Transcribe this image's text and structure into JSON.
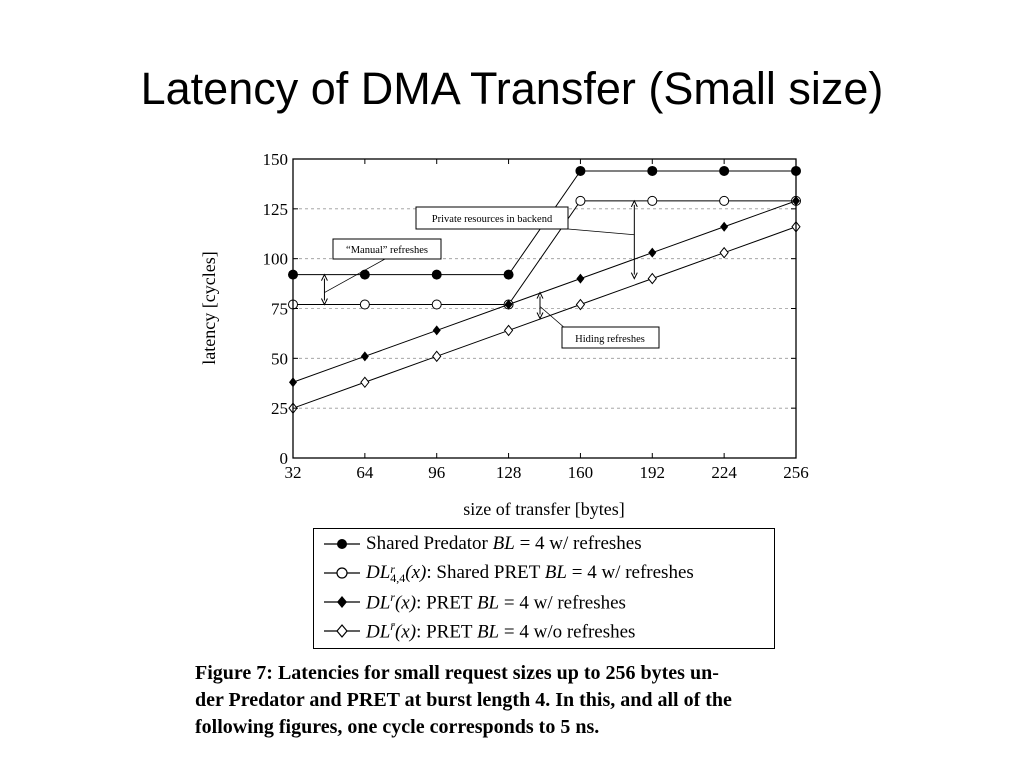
{
  "slide": {
    "title": "Latency of DMA Transfer (Small size)"
  },
  "chart_data": {
    "type": "line",
    "xlabel": "size of transfer [bytes]",
    "ylabel": "latency [cycles]",
    "x": [
      32,
      64,
      96,
      128,
      160,
      192,
      224,
      256
    ],
    "x_ticks": [
      "32",
      "64",
      "96",
      "128",
      "160",
      "192",
      "224",
      "256"
    ],
    "y_ticks": [
      "0",
      "25",
      "50",
      "75",
      "100",
      "125",
      "150"
    ],
    "xlim": [
      32,
      256
    ],
    "ylim": [
      0,
      150
    ],
    "grid": "horizontal dashed",
    "legend_position": "below",
    "series": [
      {
        "marker": "filled-circle",
        "values": [
          92,
          92,
          92,
          92,
          144,
          144,
          144,
          144
        ],
        "legend": {
          "prefix": "",
          "math": "",
          "text": "Shared Predator ",
          "math2": "BL",
          "text2": " = 4 w/ refreshes"
        }
      },
      {
        "marker": "open-circle",
        "values": [
          77,
          77,
          77,
          77,
          129,
          129,
          129,
          129
        ],
        "legend": {
          "prefix": "",
          "math": "DL",
          "sup": "r",
          "sub": "4,4",
          "arg": "(x)",
          "text": ": Shared PRET ",
          "math2": "BL",
          "text2": " = 4 w/ refreshes"
        }
      },
      {
        "marker": "filled-diamond",
        "values": [
          38,
          51,
          64,
          77,
          90,
          103,
          116,
          129
        ],
        "legend": {
          "prefix": "",
          "math": "DL",
          "sup": "r",
          "sub": "",
          "arg": "(x)",
          "text": ": PRET ",
          "math2": "BL",
          "text2": " = 4 w/ refreshes"
        }
      },
      {
        "marker": "open-diamond",
        "values": [
          25,
          38,
          51,
          64,
          77,
          90,
          103,
          116
        ],
        "legend": {
          "prefix": "",
          "math": "DL",
          "sup": "r̄",
          "sub": "",
          "arg": "(x)",
          "text": ": PRET ",
          "math2": "BL",
          "text2": " = 4 w/o refreshes"
        }
      }
    ],
    "annotations": [
      {
        "text": "“Manual” refreshes"
      },
      {
        "text": "Private resources in backend"
      },
      {
        "text": "Hiding refreshes"
      }
    ]
  },
  "caption": {
    "lines": [
      "Figure 7: Latencies for small request sizes up to 256 bytes un-",
      "der Predator and PRET at burst length 4. In this, and all of the",
      "following figures, one cycle corresponds to 5 ns."
    ]
  },
  "legend_labels": [
    {
      "name": "Shared Predator",
      "formula": "BL = 4 w/ refreshes"
    }
  ]
}
